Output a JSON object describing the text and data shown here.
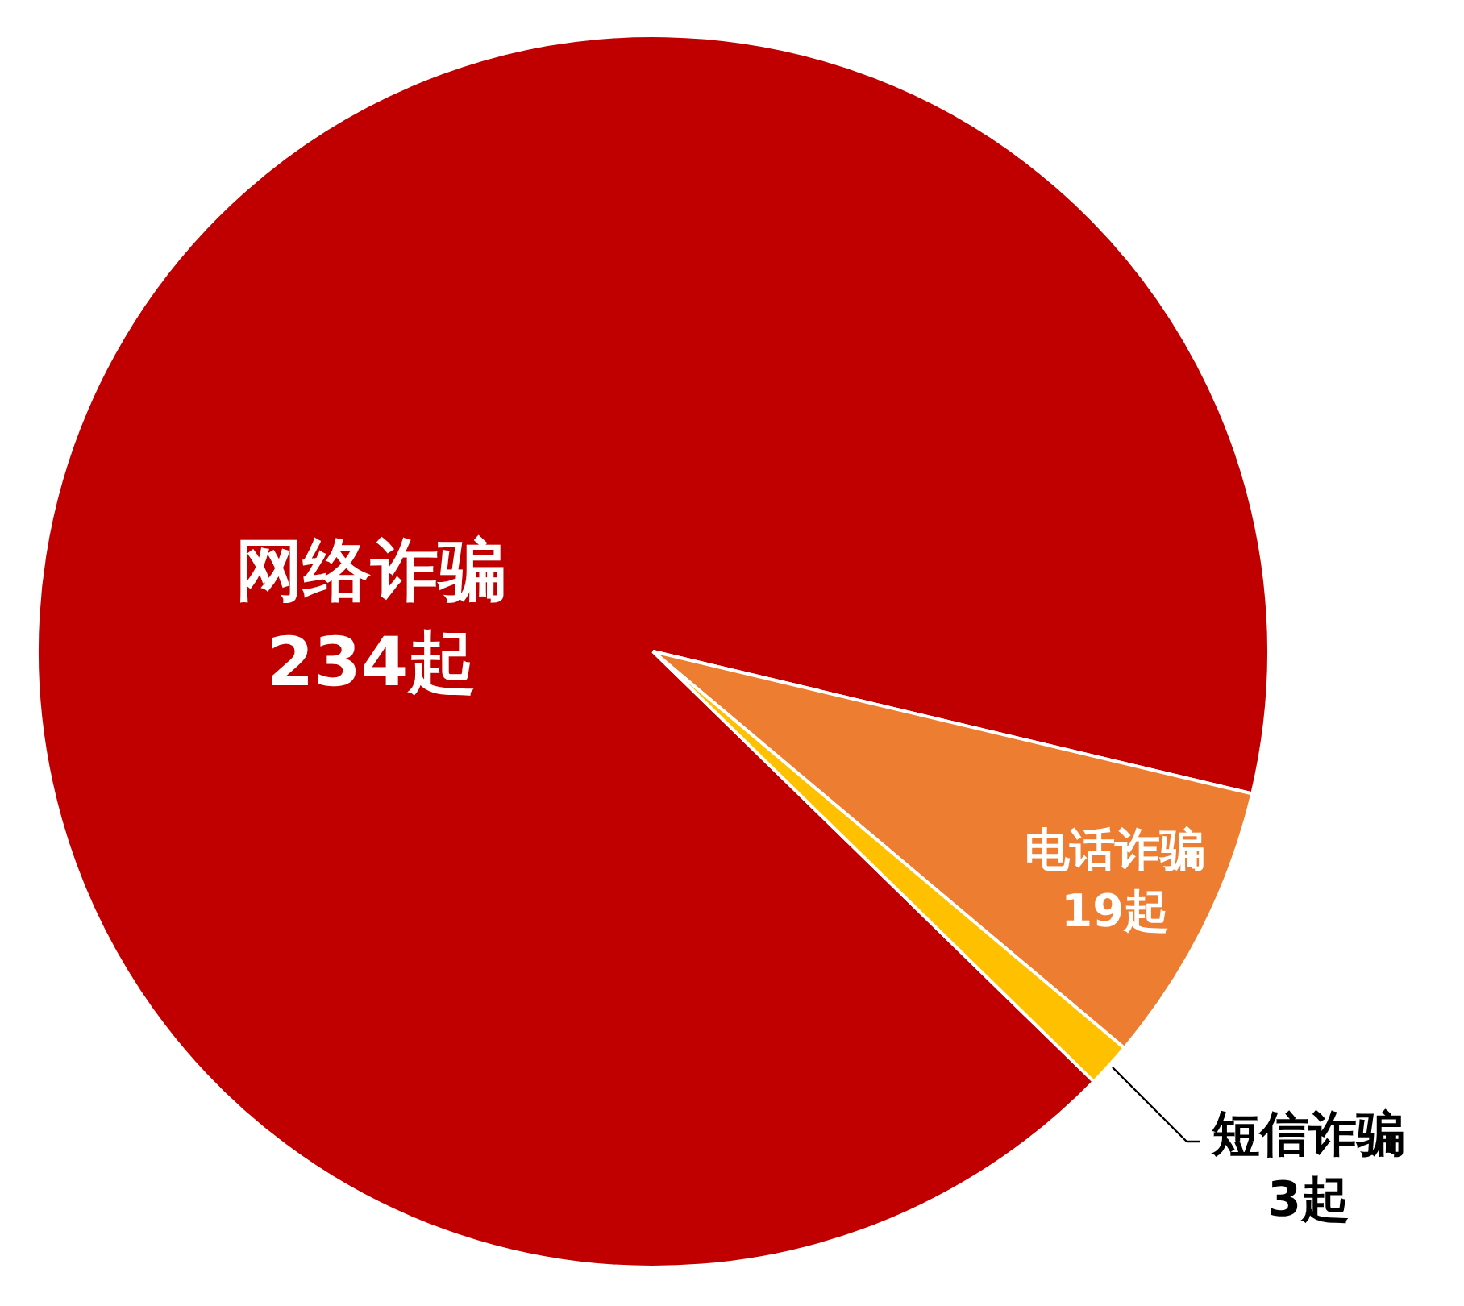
{
  "chart_data": {
    "type": "pie",
    "categories": [
      "网络诈骗",
      "电话诈骗",
      "短信诈骗"
    ],
    "values": [
      234,
      19,
      3
    ],
    "colors": [
      "#c00000",
      "#ed7d31",
      "#ffc000"
    ],
    "value_labels": [
      "234起",
      "19起",
      "3起"
    ],
    "legend": false
  }
}
